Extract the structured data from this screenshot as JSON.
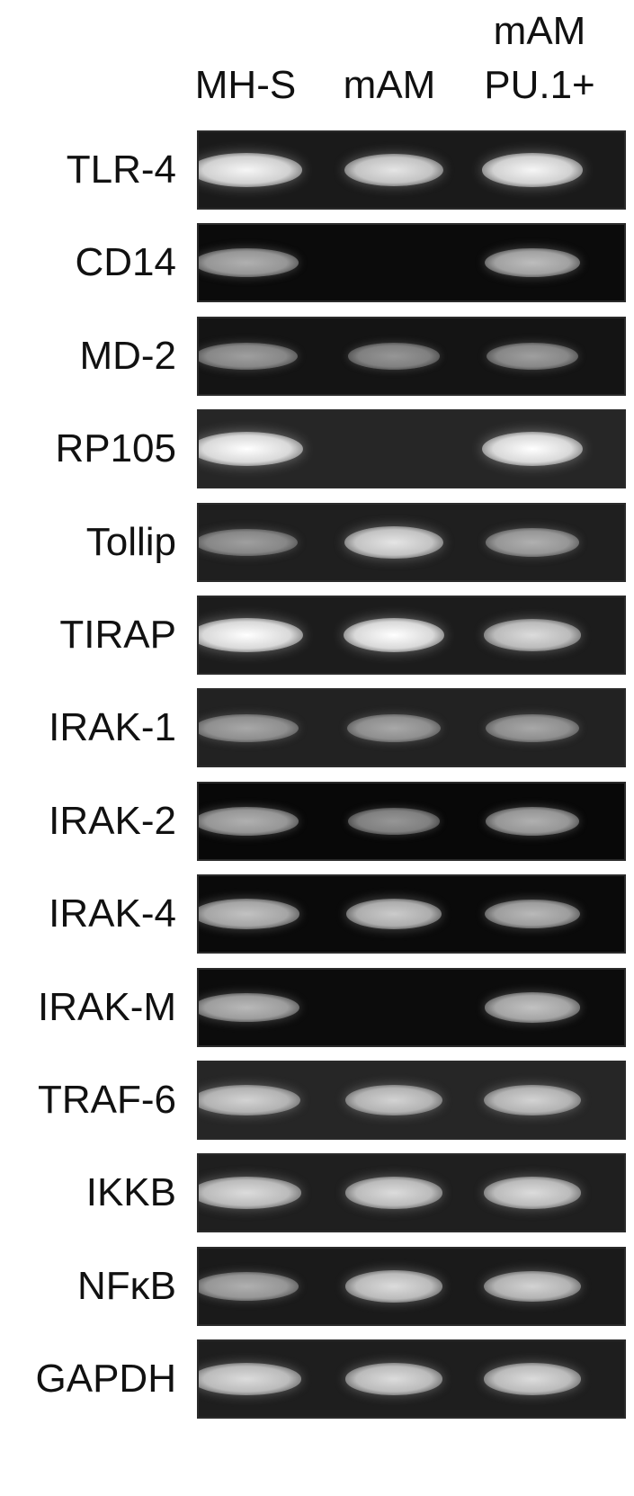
{
  "columns": [
    {
      "label": "MH-S"
    },
    {
      "label": "mAM"
    },
    {
      "label_top": "mAM",
      "label_bottom": "PU.1+"
    }
  ],
  "rows": [
    {
      "gene": "TLR-4",
      "gel_bg": "#1a1a1a",
      "bands": [
        0.95,
        0.85,
        0.95
      ]
    },
    {
      "gene": "CD14",
      "gel_bg": "#0b0b0b",
      "bands": [
        0.55,
        0.0,
        0.62
      ]
    },
    {
      "gene": "MD-2",
      "gel_bg": "#141414",
      "bands": [
        0.45,
        0.4,
        0.45
      ]
    },
    {
      "gene": "RP105",
      "gel_bg": "#262626",
      "bands": [
        1.0,
        0.0,
        1.0
      ]
    },
    {
      "gene": "Tollip",
      "gel_bg": "#1f1f1f",
      "bands": [
        0.45,
        0.85,
        0.55
      ]
    },
    {
      "gene": "TIRAP",
      "gel_bg": "#1c1c1c",
      "bands": [
        1.0,
        1.0,
        0.8
      ]
    },
    {
      "gene": "IRAK-1",
      "gel_bg": "#222222",
      "bands": [
        0.5,
        0.5,
        0.5
      ]
    },
    {
      "gene": "IRAK-2",
      "gel_bg": "#080808",
      "bands": [
        0.55,
        0.4,
        0.55
      ]
    },
    {
      "gene": "IRAK-4",
      "gel_bg": "#0a0a0a",
      "bands": [
        0.65,
        0.7,
        0.6
      ]
    },
    {
      "gene": "IRAK-M",
      "gel_bg": "#0c0c0c",
      "bands": [
        0.6,
        0.0,
        0.65
      ]
    },
    {
      "gene": "TRAF-6",
      "gel_bg": "#262626",
      "bands": [
        0.75,
        0.75,
        0.75
      ]
    },
    {
      "gene": "IKKB",
      "gel_bg": "#1f1f1f",
      "bands": [
        0.8,
        0.8,
        0.8
      ]
    },
    {
      "gene": "NFκB",
      "gel_bg": "#1a1a1a",
      "bands": [
        0.55,
        0.8,
        0.75
      ]
    },
    {
      "gene": "GAPDH",
      "gel_bg": "#1e1e1e",
      "bands": [
        0.8,
        0.8,
        0.8
      ]
    }
  ]
}
